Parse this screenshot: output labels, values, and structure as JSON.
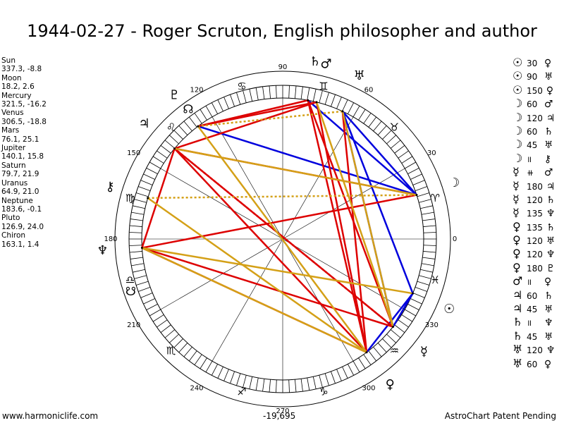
{
  "title": "1944-02-27 - Roger Scruton, English philosopher and author",
  "planets": [
    {
      "name": "Sun",
      "pos": "337.3, -8.8",
      "lon": 337.3,
      "glyph": "☉",
      "color": "#000000"
    },
    {
      "name": "Moon",
      "pos": "18.2, 2.6",
      "lon": 18.2,
      "glyph": "☽",
      "color": "#000000"
    },
    {
      "name": "Mercury",
      "pos": "321.5, -16.2",
      "lon": 321.5,
      "glyph": "☿",
      "color": "#000000"
    },
    {
      "name": "Venus",
      "pos": "306.5, -18.8",
      "lon": 306.5,
      "glyph": "♀",
      "color": "#000000"
    },
    {
      "name": "Mars",
      "pos": "76.1, 25.1",
      "lon": 76.1,
      "glyph": "♂",
      "color": "#000000"
    },
    {
      "name": "Jupiter",
      "pos": "140.1, 15.8",
      "lon": 140.1,
      "glyph": "♃",
      "color": "#000000"
    },
    {
      "name": "Saturn",
      "pos": "79.7, 21.9",
      "lon": 79.7,
      "glyph": "♄",
      "color": "#000000"
    },
    {
      "name": "Uranus",
      "pos": "64.9, 21.0",
      "lon": 64.9,
      "glyph": "♅",
      "color": "#000000"
    },
    {
      "name": "Neptune",
      "pos": "183.6, -0.1",
      "lon": 183.6,
      "glyph": "♆",
      "color": "#000000"
    },
    {
      "name": "Pluto",
      "pos": "126.9, 24.0",
      "lon": 126.9,
      "glyph": "♇",
      "color": "#000000"
    },
    {
      "name": "Chiron",
      "pos": "163.1, 1.4",
      "lon": 163.1,
      "glyph": "⚷",
      "color": "#000000"
    }
  ],
  "nodes": [
    {
      "name": "north-node",
      "glyph": "☊",
      "lon": 126.0
    },
    {
      "name": "south-node",
      "glyph": "☋",
      "lon": 199.0
    }
  ],
  "degree_labels": [
    {
      "deg": 0,
      "text": "0"
    },
    {
      "deg": 30,
      "text": "30"
    },
    {
      "deg": 60,
      "text": "60"
    },
    {
      "deg": 90,
      "text": "90"
    },
    {
      "deg": 120,
      "text": "120"
    },
    {
      "deg": 150,
      "text": "150"
    },
    {
      "deg": 180,
      "text": "180"
    },
    {
      "deg": 210,
      "text": "210"
    },
    {
      "deg": 240,
      "text": "240"
    },
    {
      "deg": 270,
      "text": "270"
    },
    {
      "deg": 300,
      "text": "300"
    },
    {
      "deg": 330,
      "text": "330"
    }
  ],
  "zodiac": [
    {
      "glyph": "♈",
      "lon": 15
    },
    {
      "glyph": "♉",
      "lon": 45
    },
    {
      "glyph": "♊",
      "lon": 75
    },
    {
      "glyph": "♋",
      "lon": 105
    },
    {
      "glyph": "♌",
      "lon": 135
    },
    {
      "glyph": "♍",
      "lon": 165
    },
    {
      "glyph": "♎",
      "lon": 195
    },
    {
      "glyph": "♏",
      "lon": 225
    },
    {
      "glyph": "♐",
      "lon": 255
    },
    {
      "glyph": "♑",
      "lon": 285
    },
    {
      "glyph": "♒",
      "lon": 315
    },
    {
      "glyph": "♓",
      "lon": 345
    }
  ],
  "aspect_lines": [
    {
      "a": "Sun",
      "b": "Venus",
      "color": "#0000dd",
      "dash": false
    },
    {
      "a": "Sun",
      "b": "Mercury",
      "color": "#0000dd",
      "dash": false
    },
    {
      "a": "Sun",
      "b": "Uranus",
      "color": "#0000dd",
      "dash": false
    },
    {
      "a": "Moon",
      "b": "Pluto",
      "color": "#0000dd",
      "dash": false
    },
    {
      "a": "Moon",
      "b": "Saturn",
      "color": "#0000dd",
      "dash": false
    },
    {
      "a": "Moon",
      "b": "Uranus",
      "color": "#0000dd",
      "dash": false
    },
    {
      "a": "Mercury",
      "b": "Uranus",
      "color": "#0000dd",
      "dash": false
    },
    {
      "a": "Venus",
      "b": "Saturn",
      "color": "#dd0000",
      "dash": false
    },
    {
      "a": "Venus",
      "b": "Uranus",
      "color": "#dd0000",
      "dash": false
    },
    {
      "a": "Mars",
      "b": "Venus",
      "color": "#dd0000",
      "dash": false
    },
    {
      "a": "Mars",
      "b": "Jupiter",
      "color": "#dd0000",
      "dash": false
    },
    {
      "a": "Mars",
      "b": "Pluto",
      "color": "#dd0000",
      "dash": false
    },
    {
      "a": "Mercury",
      "b": "Jupiter",
      "color": "#dd0000",
      "dash": false
    },
    {
      "a": "Mercury",
      "b": "Neptune",
      "color": "#dd0000",
      "dash": false
    },
    {
      "a": "Mercury",
      "b": "Saturn",
      "color": "#dd0000",
      "dash": false
    },
    {
      "a": "Venus",
      "b": "Neptune",
      "color": "#dd0000",
      "dash": false
    },
    {
      "a": "Venus",
      "b": "Jupiter",
      "color": "#dd0000",
      "dash": false
    },
    {
      "a": "Jupiter",
      "b": "Neptune",
      "color": "#dd0000",
      "dash": false
    },
    {
      "a": "Moon",
      "b": "Neptune",
      "color": "#dd0000",
      "dash": false
    },
    {
      "a": "Saturn",
      "b": "Pluto",
      "color": "#dd0000",
      "dash": false
    },
    {
      "a": "Moon",
      "b": "Jupiter",
      "color": "#dd0000",
      "dash": false
    },
    {
      "a": "Jupiter",
      "b": "Mercury",
      "color": "#dd0000",
      "dash": true
    },
    {
      "a": "Mercury",
      "b": "Mars",
      "color": "#d4a017",
      "dash": false
    },
    {
      "a": "Venus",
      "b": "Chiron",
      "color": "#d4a017",
      "dash": false
    },
    {
      "a": "Venus",
      "b": "Pluto",
      "color": "#d4a017",
      "dash": false
    },
    {
      "a": "Neptune",
      "b": "Sun",
      "color": "#d4a017",
      "dash": false
    },
    {
      "a": "Jupiter",
      "b": "Moon",
      "color": "#d4a017",
      "dash": false
    },
    {
      "a": "Uranus",
      "b": "Mercury",
      "color": "#d4a017",
      "dash": false
    },
    {
      "a": "Chiron",
      "b": "Moon",
      "color": "#d4a017",
      "dash": true
    },
    {
      "a": "Uranus",
      "b": "Pluto",
      "color": "#d4a017",
      "dash": true
    },
    {
      "a": "Neptune",
      "b": "Venus",
      "color": "#d4a017",
      "dash": false
    }
  ],
  "aspects": [
    {
      "g1": "☉",
      "n": "30",
      "g2": "♀"
    },
    {
      "g1": "☉",
      "n": "90",
      "g2": "♅"
    },
    {
      "g1": "☉",
      "n": "150",
      "g2": "♀"
    },
    {
      "g1": "☽",
      "n": "60",
      "g2": "♂"
    },
    {
      "g1": "☽",
      "n": "120",
      "g2": "♃"
    },
    {
      "g1": "☽",
      "n": "60",
      "g2": "♄"
    },
    {
      "g1": "☽",
      "n": "45",
      "g2": "♅"
    },
    {
      "g1": "☽",
      "n": "॥",
      "g2": "⚷"
    },
    {
      "g1": "☿",
      "n": "⧺",
      "g2": "♂"
    },
    {
      "g1": "☿",
      "n": "180",
      "g2": "♃"
    },
    {
      "g1": "☿",
      "n": "120",
      "g2": "♄"
    },
    {
      "g1": "☿",
      "n": "135",
      "g2": "♆"
    },
    {
      "g1": "♀",
      "n": "135",
      "g2": "♄"
    },
    {
      "g1": "♀",
      "n": "120",
      "g2": "♅"
    },
    {
      "g1": "♀",
      "n": "120",
      "g2": "♆"
    },
    {
      "g1": "♀",
      "n": "180",
      "g2": "♇"
    },
    {
      "g1": "♂",
      "n": "॥",
      "g2": "♀"
    },
    {
      "g1": "♃",
      "n": "60",
      "g2": "♄"
    },
    {
      "g1": "♃",
      "n": "45",
      "g2": "♅"
    },
    {
      "g1": "♄",
      "n": "॥",
      "g2": "♆"
    },
    {
      "g1": "♄",
      "n": "45",
      "g2": "♅"
    },
    {
      "g1": "♅",
      "n": "120",
      "g2": "♆"
    },
    {
      "g1": "♅",
      "n": "60",
      "g2": "♀"
    }
  ],
  "footer": {
    "site": "www.harmoniclife.com",
    "value": "-19,695",
    "credit": "AstroChart Patent Pending"
  }
}
